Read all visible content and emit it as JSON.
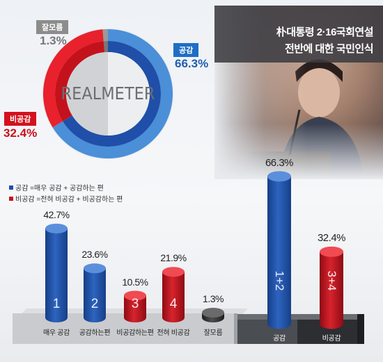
{
  "title": {
    "line1": "朴대통령 2·16국회연설",
    "line2": "전반에 대한 국민인식"
  },
  "watermark": "REALMETER",
  "donut": {
    "segments": [
      {
        "label": "공감",
        "value": 66.3,
        "display": "66.3%",
        "color": "#1f4fa8",
        "color_outer": "#4a8fd8"
      },
      {
        "label": "비공감",
        "value": 32.4,
        "display": "32.4%",
        "color": "#c4121c",
        "color_outer": "#e8212c"
      },
      {
        "label": "잘모름",
        "value": 1.3,
        "display": "1.3%",
        "color": "#777777",
        "color_outer": "#9a9a9a"
      }
    ]
  },
  "legend": [
    {
      "text": "공감 =매우 공감 + 공감하는 편",
      "color": "#1f4fa8"
    },
    {
      "text": "비공감 =전혀 비공감 + 비공감하는 편",
      "color": "#c4121c"
    }
  ],
  "chart_data": [
    {
      "type": "pie",
      "categories": [
        "공감",
        "비공감",
        "잘모름"
      ],
      "values": [
        66.3,
        32.4,
        1.3
      ],
      "title": ""
    },
    {
      "type": "bar",
      "categories": [
        "매우 공감",
        "공감하는편",
        "비공감하는편",
        "전혀 비공감",
        "잘모름"
      ],
      "values": [
        42.7,
        23.6,
        10.5,
        21.9,
        1.3
      ],
      "value_labels": [
        "42.7%",
        "23.6%",
        "10.5%",
        "21.9%",
        "1.3%"
      ],
      "bar_numbers": [
        "1",
        "2",
        "3",
        "4",
        ""
      ],
      "colors": [
        "#1f4fa8",
        "#1f4fa8",
        "#c4121c",
        "#c4121c",
        "#3a3a3a"
      ],
      "title": ""
    },
    {
      "type": "bar",
      "categories": [
        "공감",
        "비공감"
      ],
      "values": [
        66.3,
        32.4
      ],
      "value_labels": [
        "66.3%",
        "32.4%"
      ],
      "bar_numbers": [
        "1+2",
        "3+4"
      ],
      "colors": [
        "#1f4fa8",
        "#c4121c"
      ],
      "title": ""
    }
  ]
}
